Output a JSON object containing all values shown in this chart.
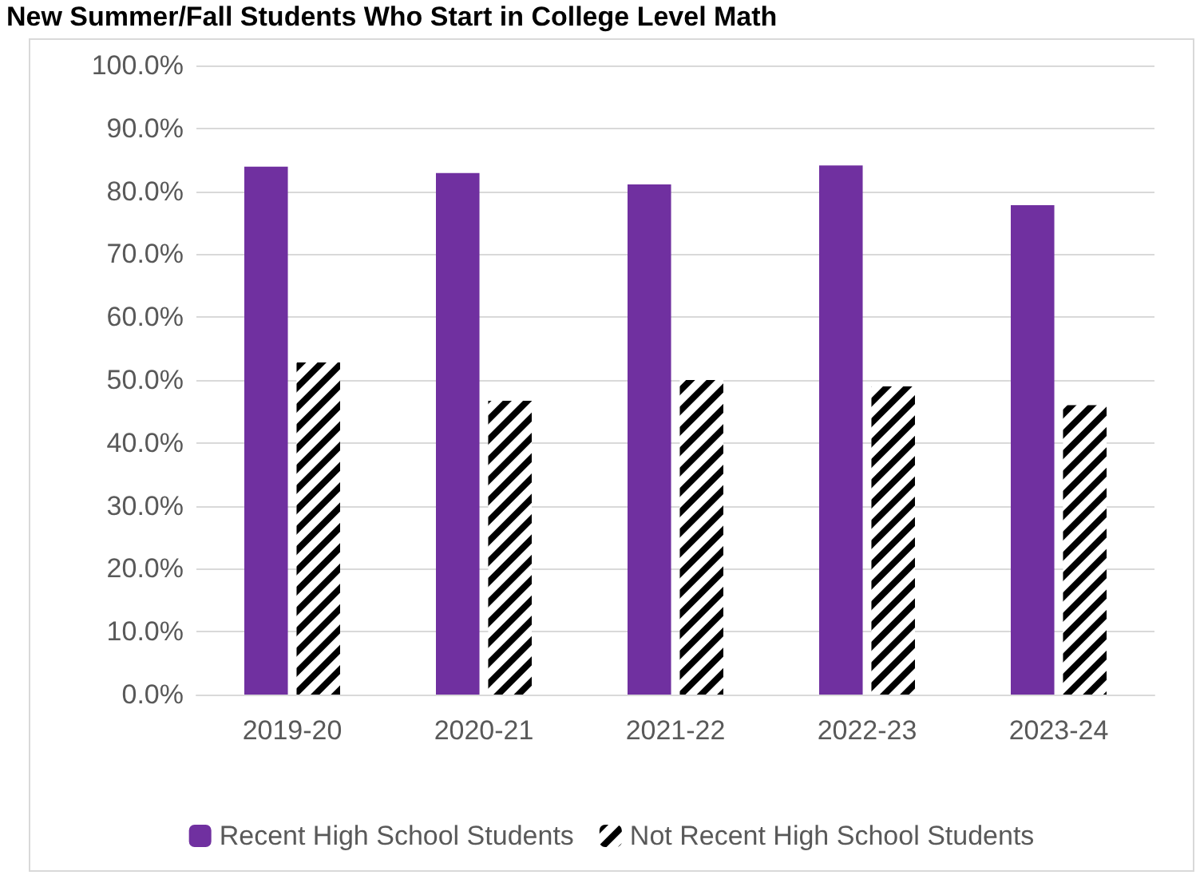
{
  "chart_data": {
    "type": "bar",
    "title": "New Summer/Fall Students Who Start in College Level Math",
    "categories": [
      "2019-20",
      "2020-21",
      "2021-22",
      "2022-23",
      "2023-24"
    ],
    "series": [
      {
        "name": "Recent High School Students",
        "color": "#7030a0",
        "values": [
          83.9,
          82.9,
          81.1,
          84.1,
          77.8
        ]
      },
      {
        "name": "Not Recent High School Students",
        "color": "#000000",
        "values": [
          52.8,
          46.7,
          50.0,
          49.0,
          46.0
        ]
      }
    ],
    "ylim": [
      0,
      100
    ],
    "yticks": [
      {
        "value": 0,
        "label": "0.0%"
      },
      {
        "value": 10,
        "label": "10.0%"
      },
      {
        "value": 20,
        "label": "20.0%"
      },
      {
        "value": 30,
        "label": "30.0%"
      },
      {
        "value": 40,
        "label": "40.0%"
      },
      {
        "value": 50,
        "label": "50.0%"
      },
      {
        "value": 60,
        "label": "60.0%"
      },
      {
        "value": 70,
        "label": "70.0%"
      },
      {
        "value": 80,
        "label": "80.0%"
      },
      {
        "value": 90,
        "label": "90.0%"
      },
      {
        "value": 100,
        "label": "100.0%"
      }
    ],
    "grid": "y",
    "legend": "bottom"
  }
}
